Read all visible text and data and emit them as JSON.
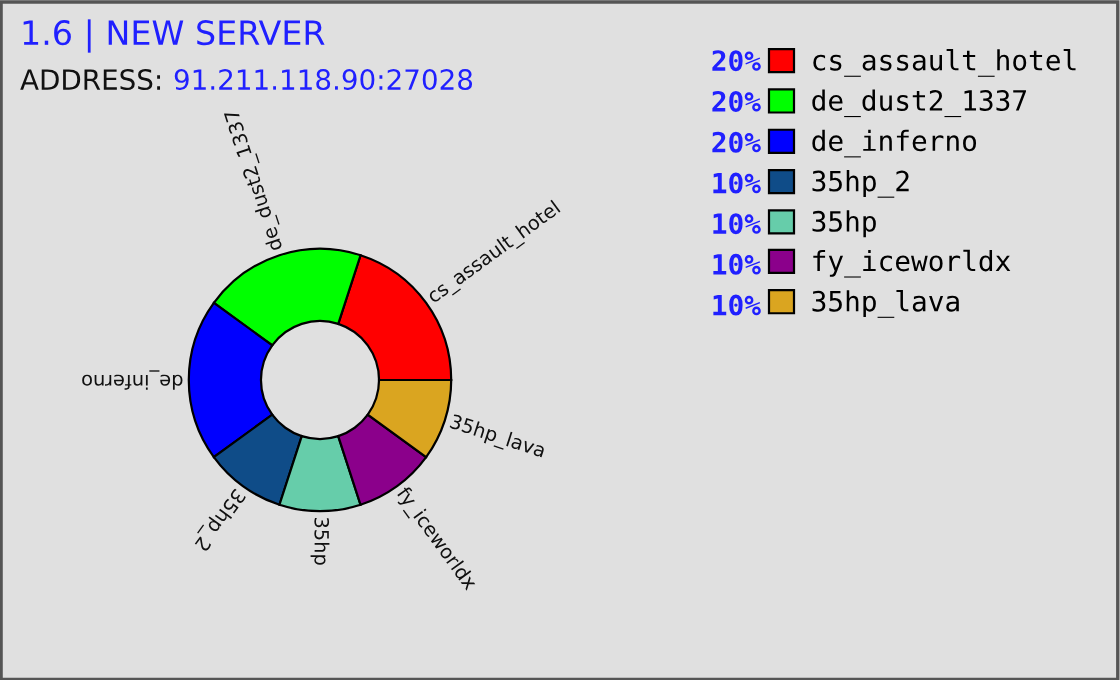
{
  "chart_data": {
    "type": "donut",
    "title": "1.6 | NEW SERVER",
    "annotations": [
      "ADDRESS:",
      "91.211.118.90:27028"
    ],
    "categories": [
      "cs_assault_hotel",
      "de_dust2_1337",
      "de_inferno",
      "35hp_2",
      "35hp",
      "fy_iceworldx",
      "35hp_lava"
    ],
    "values": [
      20,
      20,
      20,
      10,
      10,
      10,
      10
    ],
    "value_labels": [
      "20%",
      "20%",
      "20%",
      "10%",
      "10%",
      "10%",
      "10%"
    ],
    "colors": [
      "#ff0000",
      "#00ff00",
      "#0000ff",
      "#0f4c88",
      "#66cdaa",
      "#8b008b",
      "#daa520"
    ],
    "legend": "right"
  }
}
